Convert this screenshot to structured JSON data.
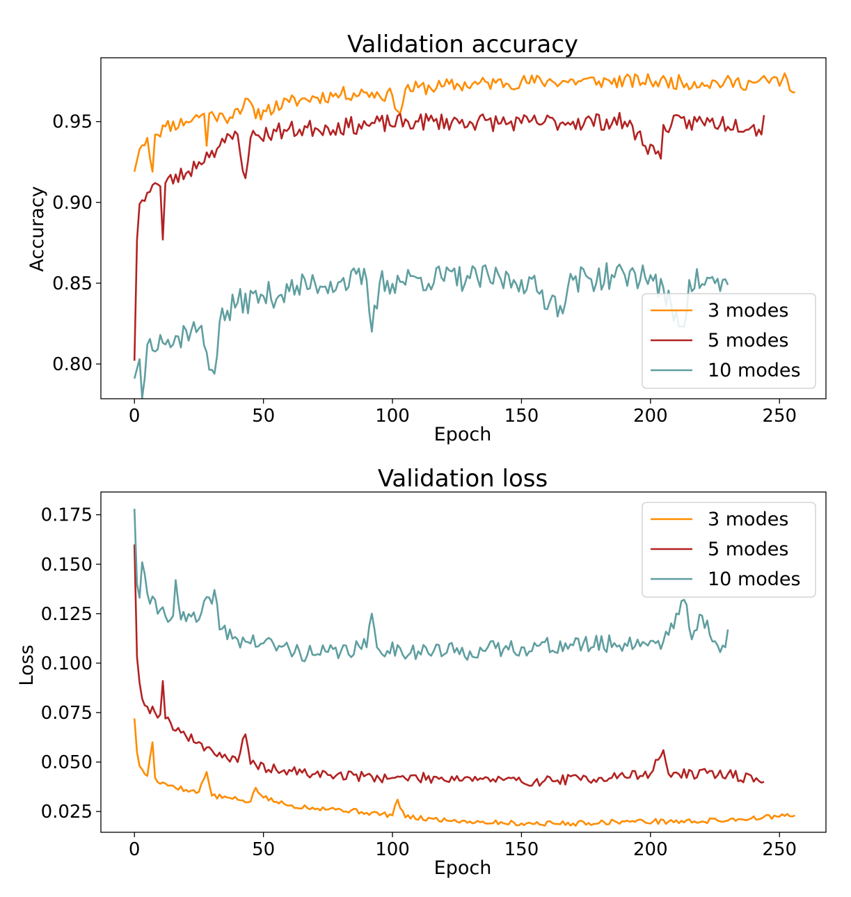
{
  "chart_data": [
    {
      "type": "line",
      "title": "Validation accuracy",
      "xlabel": "Epoch",
      "ylabel": "Accuracy",
      "xlim": [
        -13,
        268
      ],
      "ylim": [
        0.7785,
        0.9895
      ],
      "xticks": [
        0,
        50,
        100,
        150,
        200,
        250
      ],
      "xtick_labels": [
        "0",
        "50",
        "100",
        "150",
        "200",
        "250"
      ],
      "yticks": [
        0.8,
        0.85,
        0.9,
        0.95
      ],
      "ytick_labels": [
        "0.80",
        "0.85",
        "0.90",
        "0.95"
      ],
      "grid": false,
      "legend_position": "lower-right",
      "series": [
        {
          "name": "3 modes",
          "color": "#ff8c00",
          "last_epoch": 256,
          "anchors": [
            [
              0,
              0.919
            ],
            [
              2,
              0.933
            ],
            [
              5,
              0.94
            ],
            [
              7,
              0.919
            ],
            [
              8,
              0.942
            ],
            [
              12,
              0.947
            ],
            [
              20,
              0.95
            ],
            [
              27,
              0.955
            ],
            [
              28,
              0.935
            ],
            [
              29,
              0.955
            ],
            [
              35,
              0.952
            ],
            [
              40,
              0.958
            ],
            [
              45,
              0.962
            ],
            [
              47,
              0.952
            ],
            [
              50,
              0.957
            ],
            [
              60,
              0.962
            ],
            [
              70,
              0.965
            ],
            [
              80,
              0.967
            ],
            [
              90,
              0.968
            ],
            [
              100,
              0.966
            ],
            [
              103,
              0.955
            ],
            [
              105,
              0.97
            ],
            [
              120,
              0.972
            ],
            [
              140,
              0.974
            ],
            [
              160,
              0.975
            ],
            [
              180,
              0.975
            ],
            [
              200,
              0.975
            ],
            [
              220,
              0.974
            ],
            [
              240,
              0.974
            ],
            [
              253,
              0.976
            ],
            [
              256,
              0.968
            ]
          ],
          "noise": 0.0045,
          "seed": 11
        },
        {
          "name": "5 modes",
          "color": "#b22222",
          "last_epoch": 244,
          "anchors": [
            [
              0,
              0.802
            ],
            [
              1,
              0.877
            ],
            [
              2,
              0.899
            ],
            [
              5,
              0.906
            ],
            [
              8,
              0.912
            ],
            [
              10,
              0.91
            ],
            [
              11,
              0.877
            ],
            [
              12,
              0.912
            ],
            [
              20,
              0.918
            ],
            [
              25,
              0.925
            ],
            [
              30,
              0.932
            ],
            [
              35,
              0.937
            ],
            [
              40,
              0.942
            ],
            [
              43,
              0.915
            ],
            [
              45,
              0.94
            ],
            [
              55,
              0.944
            ],
            [
              70,
              0.946
            ],
            [
              90,
              0.948
            ],
            [
              110,
              0.95
            ],
            [
              130,
              0.95
            ],
            [
              150,
              0.949
            ],
            [
              170,
              0.95
            ],
            [
              190,
              0.95
            ],
            [
              204,
              0.927
            ],
            [
              205,
              0.948
            ],
            [
              220,
              0.95
            ],
            [
              240,
              0.948
            ],
            [
              243,
              0.942
            ],
            [
              244,
              0.954
            ]
          ],
          "noise": 0.0055,
          "seed": 23
        },
        {
          "name": "10 modes",
          "color": "#5f9ea0",
          "last_epoch": 230,
          "anchors": [
            [
              0,
              0.791
            ],
            [
              2,
              0.803
            ],
            [
              3,
              0.779
            ],
            [
              5,
              0.812
            ],
            [
              10,
              0.818
            ],
            [
              15,
              0.812
            ],
            [
              20,
              0.821
            ],
            [
              25,
              0.822
            ],
            [
              31,
              0.794
            ],
            [
              33,
              0.826
            ],
            [
              40,
              0.838
            ],
            [
              50,
              0.842
            ],
            [
              60,
              0.845
            ],
            [
              70,
              0.85
            ],
            [
              80,
              0.851
            ],
            [
              90,
              0.852
            ],
            [
              92,
              0.82
            ],
            [
              95,
              0.85
            ],
            [
              110,
              0.853
            ],
            [
              130,
              0.853
            ],
            [
              150,
              0.852
            ],
            [
              165,
              0.836
            ],
            [
              170,
              0.852
            ],
            [
              190,
              0.855
            ],
            [
              200,
              0.855
            ],
            [
              213,
              0.823
            ],
            [
              215,
              0.852
            ],
            [
              225,
              0.85
            ],
            [
              230,
              0.849
            ]
          ],
          "noise": 0.0085,
          "seed": 37
        }
      ]
    },
    {
      "type": "line",
      "title": "Validation loss",
      "xlabel": "Epoch",
      "ylabel": "Loss",
      "xlim": [
        -13,
        268
      ],
      "ylim": [
        0.0145,
        0.1865
      ],
      "xticks": [
        0,
        50,
        100,
        150,
        200,
        250
      ],
      "xtick_labels": [
        "0",
        "50",
        "100",
        "150",
        "200",
        "250"
      ],
      "yticks": [
        0.025,
        0.05,
        0.075,
        0.1,
        0.125,
        0.15,
        0.175
      ],
      "ytick_labels": [
        "0.025",
        "0.050",
        "0.075",
        "0.100",
        "0.125",
        "0.150",
        "0.175"
      ],
      "grid": false,
      "legend_position": "upper-right",
      "series": [
        {
          "name": "3 modes",
          "color": "#ff8c00",
          "last_epoch": 256,
          "anchors": [
            [
              0,
              0.072
            ],
            [
              1,
              0.055
            ],
            [
              2,
              0.048
            ],
            [
              5,
              0.043
            ],
            [
              7,
              0.06
            ],
            [
              8,
              0.042
            ],
            [
              10,
              0.039
            ],
            [
              15,
              0.038
            ],
            [
              20,
              0.036
            ],
            [
              25,
              0.035
            ],
            [
              28,
              0.045
            ],
            [
              30,
              0.033
            ],
            [
              40,
              0.031
            ],
            [
              45,
              0.03
            ],
            [
              47,
              0.037
            ],
            [
              50,
              0.032
            ],
            [
              60,
              0.028
            ],
            [
              80,
              0.026
            ],
            [
              100,
              0.023
            ],
            [
              102,
              0.031
            ],
            [
              105,
              0.022
            ],
            [
              130,
              0.02
            ],
            [
              150,
              0.019
            ],
            [
              170,
              0.019
            ],
            [
              190,
              0.02
            ],
            [
              220,
              0.02
            ],
            [
              256,
              0.023
            ]
          ],
          "noise": 0.0013,
          "seed": 5
        },
        {
          "name": "5 modes",
          "color": "#b22222",
          "last_epoch": 244,
          "anchors": [
            [
              0,
              0.16
            ],
            [
              1,
              0.103
            ],
            [
              2,
              0.09
            ],
            [
              3,
              0.082
            ],
            [
              5,
              0.078
            ],
            [
              10,
              0.074
            ],
            [
              11,
              0.091
            ],
            [
              12,
              0.072
            ],
            [
              20,
              0.063
            ],
            [
              30,
              0.056
            ],
            [
              40,
              0.05
            ],
            [
              43,
              0.064
            ],
            [
              45,
              0.049
            ],
            [
              55,
              0.046
            ],
            [
              70,
              0.044
            ],
            [
              100,
              0.042
            ],
            [
              130,
              0.042
            ],
            [
              150,
              0.04
            ],
            [
              180,
              0.042
            ],
            [
              200,
              0.044
            ],
            [
              205,
              0.056
            ],
            [
              207,
              0.044
            ],
            [
              230,
              0.044
            ],
            [
              244,
              0.04
            ]
          ],
          "noise": 0.0026,
          "seed": 19
        },
        {
          "name": "10 modes",
          "color": "#5f9ea0",
          "last_epoch": 230,
          "anchors": [
            [
              0,
              0.178
            ],
            [
              1,
              0.14
            ],
            [
              2,
              0.133
            ],
            [
              3,
              0.151
            ],
            [
              4,
              0.145
            ],
            [
              6,
              0.13
            ],
            [
              10,
              0.127
            ],
            [
              15,
              0.124
            ],
            [
              16,
              0.142
            ],
            [
              18,
              0.122
            ],
            [
              25,
              0.122
            ],
            [
              31,
              0.137
            ],
            [
              33,
              0.117
            ],
            [
              40,
              0.112
            ],
            [
              50,
              0.11
            ],
            [
              60,
              0.107
            ],
            [
              70,
              0.104
            ],
            [
              80,
              0.106
            ],
            [
              90,
              0.108
            ],
            [
              92,
              0.125
            ],
            [
              94,
              0.108
            ],
            [
              110,
              0.106
            ],
            [
              130,
              0.106
            ],
            [
              150,
              0.108
            ],
            [
              170,
              0.109
            ],
            [
              190,
              0.11
            ],
            [
              205,
              0.111
            ],
            [
              213,
              0.132
            ],
            [
              216,
              0.112
            ],
            [
              220,
              0.124
            ],
            [
              225,
              0.111
            ],
            [
              229,
              0.108
            ],
            [
              230,
              0.117
            ]
          ],
          "noise": 0.0045,
          "seed": 41
        }
      ]
    }
  ]
}
